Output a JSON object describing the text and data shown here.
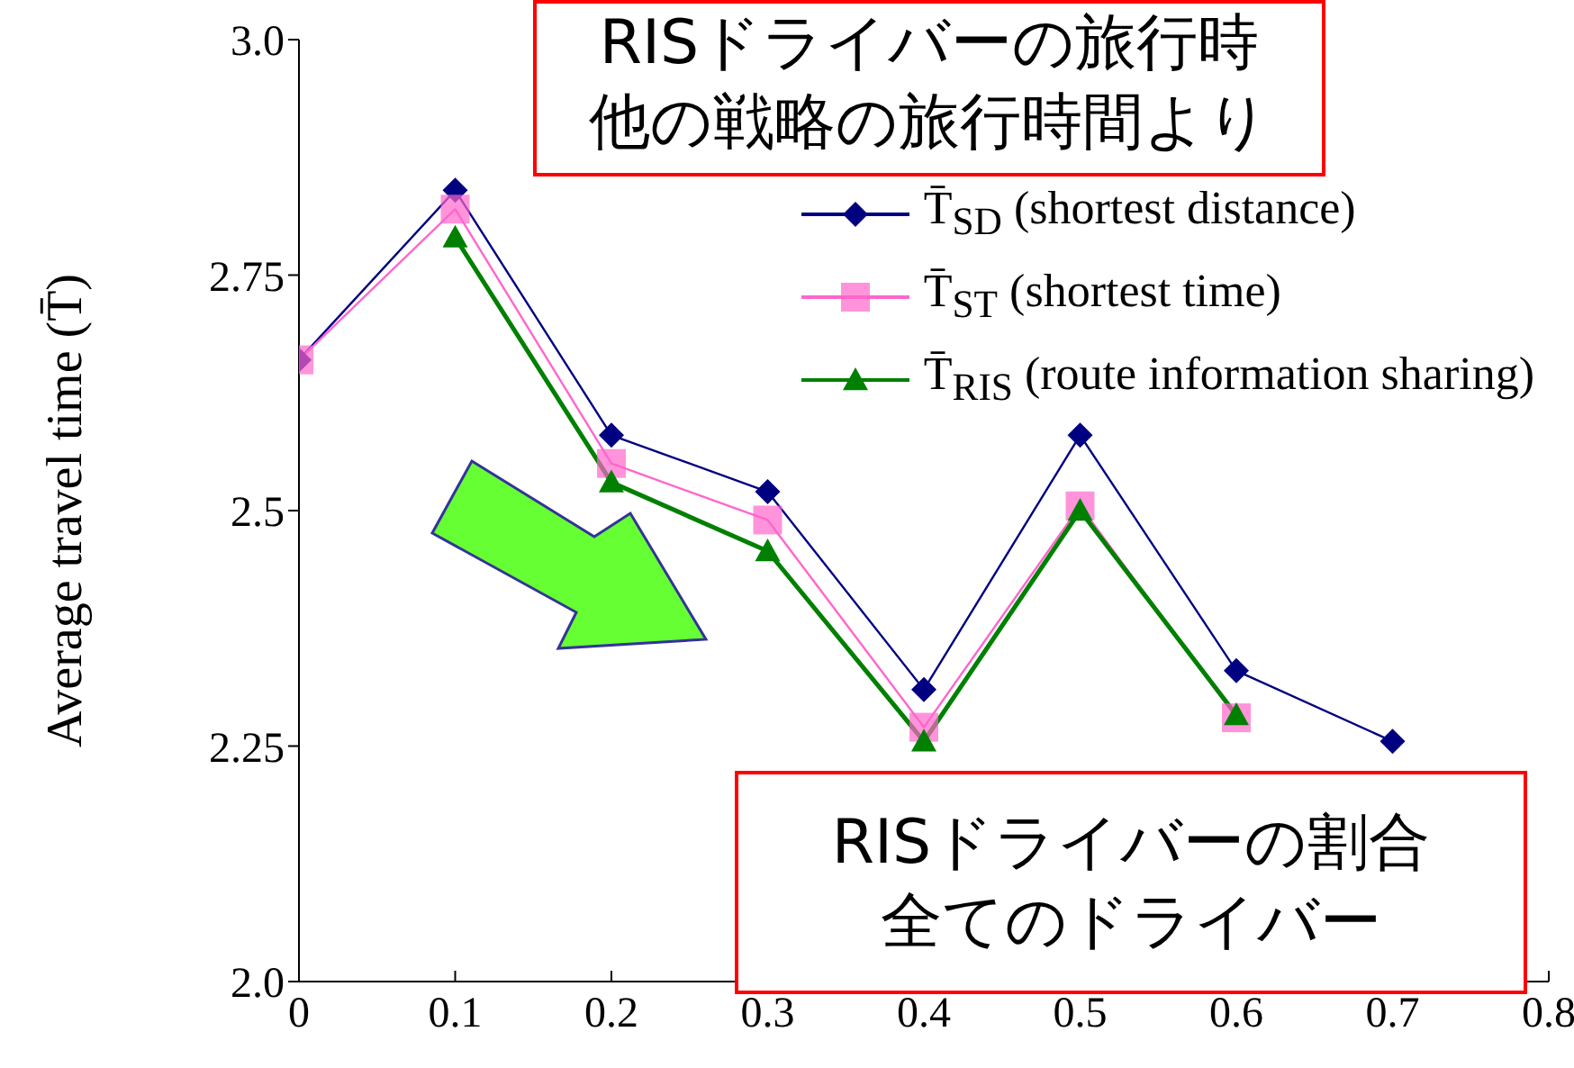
{
  "chart_data": {
    "type": "line",
    "ylabel": "Average travel time (T̄)",
    "x": [
      0,
      0.1,
      0.2,
      0.3,
      0.4,
      0.5,
      0.6,
      0.7
    ],
    "series": [
      {
        "name": "T̄$_{SD}$ (shortest distance)",
        "color": "#000080",
        "marker": "diamond",
        "values": [
          2.66,
          2.84,
          2.58,
          2.52,
          2.31,
          2.58,
          2.33,
          2.255
        ]
      },
      {
        "name": "T̄$_{ST}$ (shortest time)",
        "color": "#ff66cc",
        "marker": "square",
        "values": [
          2.66,
          2.82,
          2.55,
          2.49,
          2.27,
          2.505,
          2.28,
          null
        ]
      },
      {
        "name": "T̄$_{RIS}$ (route information sharing)",
        "color": "#008000",
        "marker": "triangle",
        "values": [
          null,
          2.79,
          2.53,
          2.457,
          2.255,
          2.5,
          2.283,
          null
        ]
      }
    ],
    "xlim": [
      0,
      0.8
    ],
    "xticks": [
      0,
      0.1,
      0.2,
      0.3,
      0.4,
      0.5,
      0.6,
      0.7,
      0.8
    ],
    "ylim": [
      2,
      3
    ],
    "yticks": [
      {
        "value": 2,
        "label": "2.0"
      },
      2.25,
      2.5,
      2.75,
      {
        "value": 3,
        "label": "3.0"
      }
    ],
    "legend": "top right",
    "grid": false,
    "annotations": [
      "RISドライバーの旅行時",
      "他の戦略の旅行時間より",
      "RISドライバーの割合",
      "全てのドライバー"
    ]
  }
}
